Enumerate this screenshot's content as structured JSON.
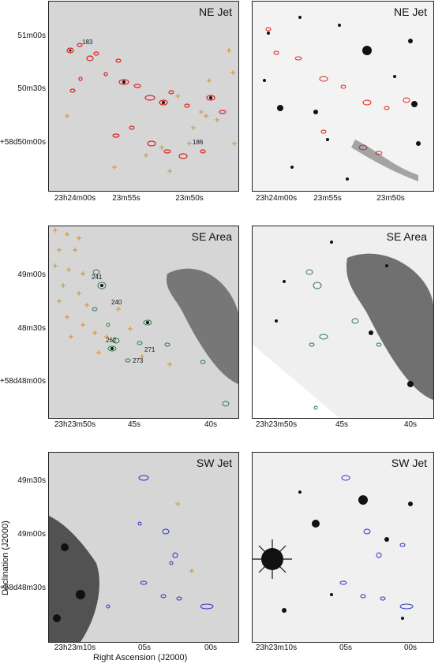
{
  "panels": {
    "p1": {
      "title": "NE Jet"
    },
    "p2": {
      "title": "NE Jet"
    },
    "p3": {
      "title": "SE Area"
    },
    "p4": {
      "title": "SE Area"
    },
    "p5": {
      "title": "SW Jet"
    },
    "p6": {
      "title": "SW Jet"
    }
  },
  "row1": {
    "dec": [
      "51m00s",
      "50m30s",
      "+58d50m00s"
    ],
    "ra": [
      "23h24m00s",
      "23m55s",
      "23m50s"
    ],
    "sources": [
      "183",
      "186"
    ]
  },
  "row2": {
    "dec": [
      "49m00s",
      "48m30s",
      "+58d48m00s"
    ],
    "ra": [
      "23h23m50s",
      "45s",
      "40s"
    ],
    "sources": [
      "241",
      "240",
      "262",
      "271",
      "273"
    ]
  },
  "row3": {
    "dec": [
      "49m30s",
      "49m00s",
      "+58d48m30s"
    ],
    "ra": [
      "23h23m10s",
      "05s",
      "00s"
    ]
  },
  "axis": {
    "xlabel": "Right Ascension (J2000)",
    "ylabel": "Declination (J2000)"
  },
  "colors": {
    "ne_contour": "#e02020",
    "se_contour": "#2f7a4a",
    "sw_contour": "#2a35c8",
    "cross": "#d4902a"
  }
}
